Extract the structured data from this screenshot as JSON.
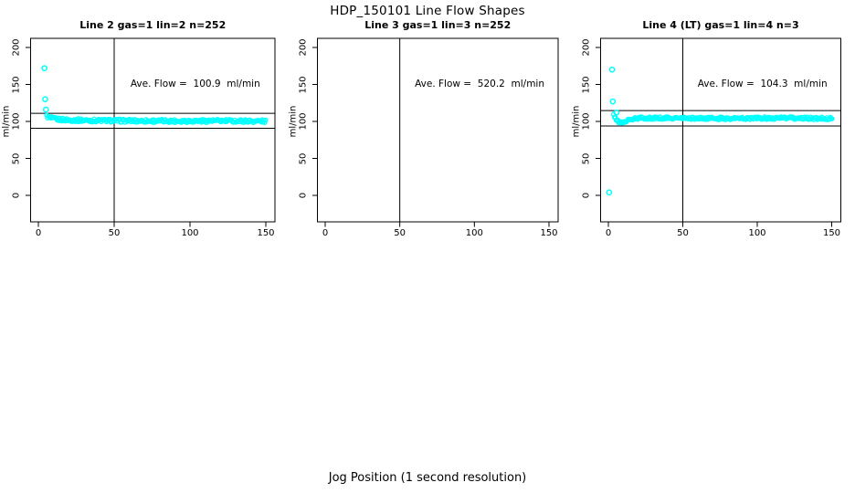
{
  "figure": {
    "title": "HDP_150101  Line Flow Shapes",
    "xlabel": "Jog Position (1 second resolution)",
    "ylabel": "ml/min"
  },
  "chart_data": {
    "type": "scatter",
    "title": "HDP_150101  Line Flow Shapes",
    "xlabel": "Jog Position (1 second resolution)",
    "ylabel": "ml/min",
    "xlim": [
      0,
      150
    ],
    "ylim": [
      0,
      200
    ],
    "x_ticks": [
      0,
      50,
      100,
      150
    ],
    "y_ticks": [
      0,
      50,
      100,
      150,
      200
    ],
    "grid": false,
    "legend": false,
    "point_color": "#00ffff",
    "line_color": "#000000",
    "panels": [
      {
        "title": "Line 2 gas=1 lin=2 n=252",
        "n": 252,
        "ave_flow": 100.9,
        "ave_flow_label": "Ave. Flow =  100.9  ml/min",
        "vline_x": 50,
        "hlines": [
          111.0,
          90.8
        ],
        "outliers": [
          [
            4,
            172
          ],
          [
            4.5,
            130
          ],
          [
            5,
            116
          ]
        ],
        "band": {
          "x_start": 5.5,
          "x_end": 150.5,
          "step": 0.58,
          "jitter": 2.2,
          "anchors": [
            [
              5.5,
              107
            ],
            [
              8,
              104.5
            ],
            [
              12,
              103
            ],
            [
              20,
              102
            ],
            [
              40,
              101.2
            ],
            [
              80,
              100.6
            ],
            [
              120,
              100.8
            ],
            [
              150.5,
              100.4
            ]
          ]
        }
      },
      {
        "title": "Line 3 gas=1 lin=3 n=252",
        "n": 252,
        "ave_flow": 520.2,
        "ave_flow_label": "Ave. Flow =  520.2  ml/min",
        "vline_x": 50,
        "hlines": [],
        "outliers": [],
        "band": null
      },
      {
        "title": "Line 4 (LT) gas=1 lin=4 n=3",
        "n": 3,
        "ave_flow": 104.3,
        "ave_flow_label": "Ave. Flow =  104.3  ml/min",
        "vline_x": 50,
        "hlines": [
          114.7,
          93.9
        ],
        "outliers": [
          [
            0.5,
            4
          ],
          [
            2.5,
            170
          ],
          [
            3,
            127
          ],
          [
            5.5,
            112
          ]
        ],
        "band": {
          "x_start": 3.5,
          "x_end": 150.5,
          "step": 0.58,
          "jitter": 1.9,
          "anchors": [
            [
              3.5,
              108
            ],
            [
              5,
              103
            ],
            [
              7,
              99.5
            ],
            [
              9,
              98
            ],
            [
              12,
              100.5
            ],
            [
              16,
              103
            ],
            [
              22,
              104.6
            ],
            [
              50,
              104.3
            ],
            [
              80,
              104.0
            ],
            [
              110,
              104.6
            ],
            [
              150.5,
              104.0
            ]
          ]
        }
      }
    ]
  }
}
